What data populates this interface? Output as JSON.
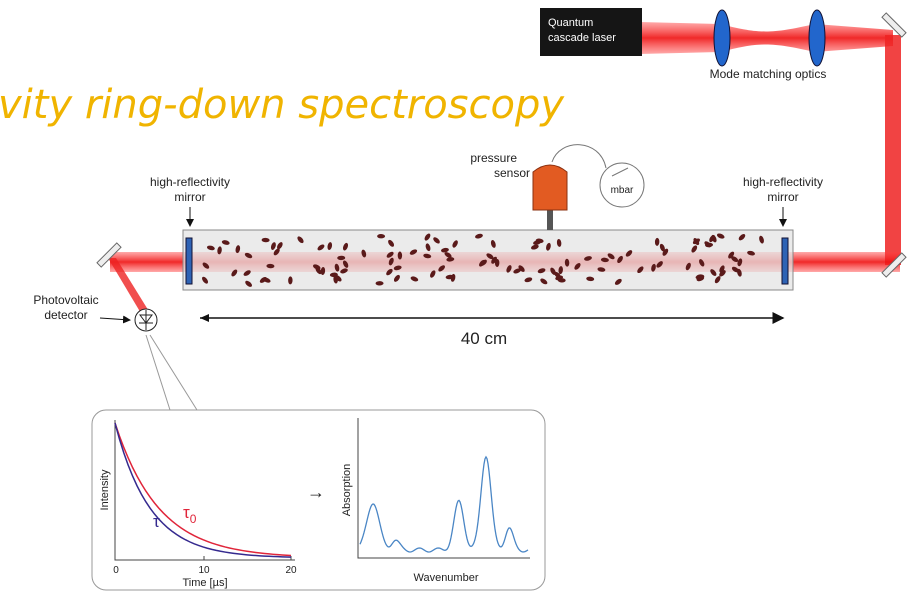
{
  "title": "vity ring-down spectroscopy",
  "laser": {
    "label": [
      "Quantum",
      "cascade laser"
    ]
  },
  "optics": {
    "label": "Mode matching optics"
  },
  "sensor": {
    "label": [
      "pressure",
      "sensor"
    ],
    "gauge": "mbar"
  },
  "mirrors": [
    {
      "label": [
        "high-reflectivity",
        "mirror"
      ]
    },
    {
      "label": [
        "high-reflectivity",
        "mirror"
      ]
    }
  ],
  "detector": {
    "label": [
      "Photovoltaic",
      "detector"
    ]
  },
  "length": "40 cm",
  "decay_plot": {
    "y_label": "Intensity",
    "x_label": "Time [µs]",
    "x_ticks": [
      "0",
      "10",
      "20"
    ],
    "curves": [
      {
        "symbol": "τ"
      },
      {
        "symbol": "τ",
        "subscript": "0"
      }
    ]
  },
  "arrow": "→",
  "spectrum": {
    "y_label": "Absorption",
    "x_label": "Wavenumber"
  }
}
